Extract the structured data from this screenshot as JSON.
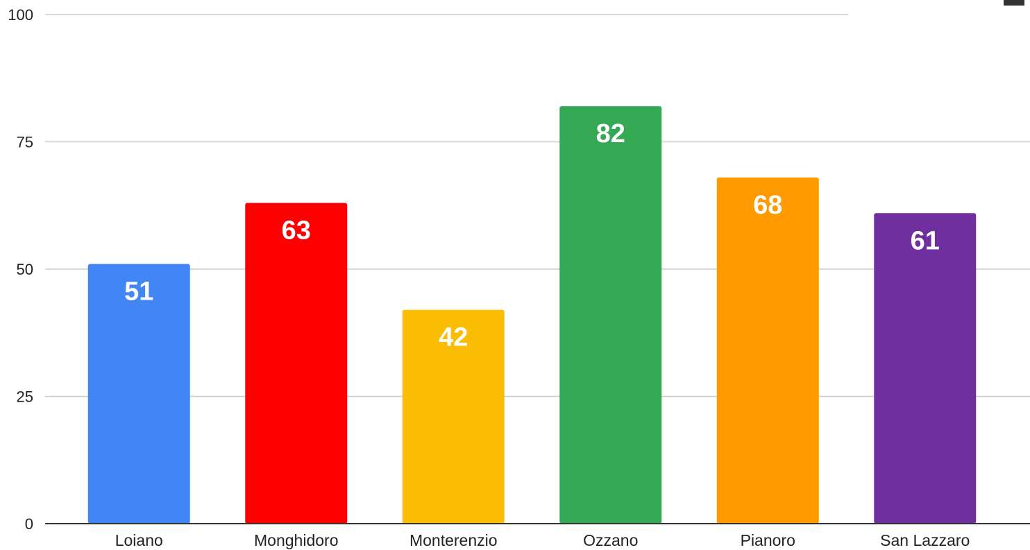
{
  "chart_data": {
    "type": "bar",
    "title": "",
    "xlabel": "",
    "ylabel": "",
    "ylim": [
      0,
      100
    ],
    "yticks": [
      0,
      25,
      50,
      75,
      100
    ],
    "grid": true,
    "legend": "none",
    "categories": [
      "Loiano",
      "Monghidoro",
      "Monterenzio",
      "Ozzano",
      "Pianoro",
      "San Lazzaro"
    ],
    "values": [
      51,
      63,
      42,
      82,
      68,
      61
    ],
    "data_labels": [
      "51",
      "63",
      "42",
      "82",
      "68",
      "61"
    ],
    "colors": [
      "#4285f4",
      "#ff0000",
      "#fbbc04",
      "#34a853",
      "#ff9900",
      "#6f2f9f"
    ],
    "gridline_color": "#cccccc",
    "axis_color": "#333333",
    "label_color": "#ffffff"
  }
}
